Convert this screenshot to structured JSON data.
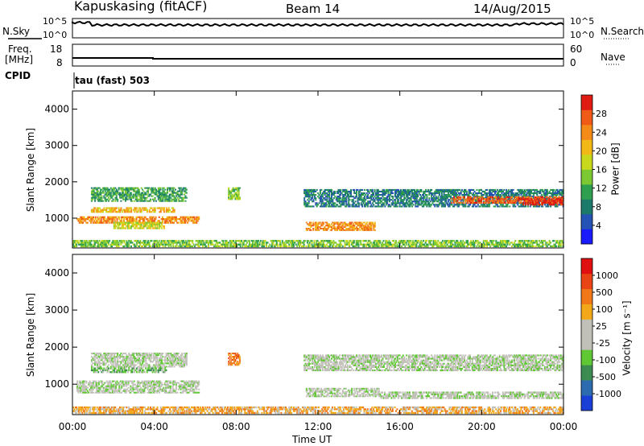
{
  "header": {
    "station": "Kapuskasing (fitACF)",
    "beam": "Beam 14",
    "date": "14/Aug/2015"
  },
  "top_panel_1": {
    "left_label": "N.Sky",
    "right_label": "N.Search",
    "left_ticks": [
      "10^5",
      "10^0"
    ],
    "right_ticks": [
      "10^5",
      "10^0"
    ]
  },
  "top_panel_2": {
    "left_label_1": "Freq.",
    "left_label_2": "[MHz]",
    "right_label": "Nave",
    "left_ticks": [
      "18",
      "8"
    ],
    "right_ticks": [
      "60",
      "0"
    ]
  },
  "cpid": {
    "label": "CPID",
    "mode": "tau (fast) 503"
  },
  "x_axis": {
    "label": "Time UT",
    "ticks": [
      "00:00",
      "04:00",
      "08:00",
      "12:00",
      "16:00",
      "20:00",
      "00:00"
    ]
  },
  "chart_data": [
    {
      "type": "heatmap",
      "name": "power",
      "ylabel": "Slant Range [km]",
      "ylim": [
        180,
        4500
      ],
      "xlim_hours": [
        0,
        24
      ],
      "y_ticks": [
        "1000",
        "2000",
        "3000",
        "4000"
      ],
      "colorbar_label": "Power [dB]",
      "colorbar_ticks": [
        "4",
        "8",
        "12",
        "16",
        "20",
        "24",
        "28"
      ],
      "colorbar_colors": [
        "#1a1aff",
        "#2552b5",
        "#1b7a6a",
        "#2e9f4e",
        "#7bc832",
        "#c8d91c",
        "#f2b818",
        "#f48a18",
        "#ef5a16",
        "#e01b12"
      ],
      "bands": [
        {
          "t0": 0.9,
          "t1": 5.6,
          "r0": 1450,
          "r1": 1850,
          "c": 3
        },
        {
          "t0": 0.9,
          "t1": 5.0,
          "r0": 1150,
          "r1": 1300,
          "c": 6
        },
        {
          "t0": 0.2,
          "t1": 6.2,
          "r0": 850,
          "r1": 1050,
          "c": 7
        },
        {
          "t0": 2.0,
          "t1": 4.5,
          "r0": 700,
          "r1": 900,
          "c": 5
        },
        {
          "t0": 0.0,
          "t1": 24.0,
          "r0": 200,
          "r1": 400,
          "c": 4
        },
        {
          "t0": 7.6,
          "t1": 8.2,
          "r0": 1500,
          "r1": 1850,
          "c": 4
        },
        {
          "t0": 11.3,
          "t1": 24.0,
          "r0": 1300,
          "r1": 1800,
          "c": 2
        },
        {
          "t0": 11.4,
          "t1": 14.8,
          "r0": 650,
          "r1": 900,
          "c": 7
        },
        {
          "t0": 18.5,
          "t1": 24.0,
          "r0": 1400,
          "r1": 1600,
          "c": 8
        },
        {
          "t0": 22.0,
          "t1": 24.0,
          "r0": 1350,
          "r1": 1550,
          "c": 9
        }
      ]
    },
    {
      "type": "heatmap",
      "name": "velocity",
      "ylabel": "Slant Range [km]",
      "ylim": [
        180,
        4500
      ],
      "xlim_hours": [
        0,
        24
      ],
      "y_ticks": [
        "1000",
        "2000",
        "3000",
        "4000"
      ],
      "colorbar_label": "Velocity [m s⁻¹]",
      "colorbar_ticks": [
        "1000",
        "500",
        "100",
        "25",
        "-25",
        "-100",
        "-500",
        "-1000"
      ],
      "colorbar_colors": [
        "#1a3fd6",
        "#2c6bb0",
        "#3c8c52",
        "#5fc832",
        "#c0c0b8",
        "#c0c0b8",
        "#f2a818",
        "#f07818",
        "#e84414",
        "#e01010"
      ],
      "bands": [
        {
          "t0": 0.9,
          "t1": 5.6,
          "r0": 1450,
          "r1": 1850,
          "c": 4
        },
        {
          "t0": 0.9,
          "t1": 4.6,
          "r0": 1300,
          "r1": 1450,
          "c": 3
        },
        {
          "t0": 0.2,
          "t1": 6.2,
          "r0": 750,
          "r1": 1100,
          "c": 4
        },
        {
          "t0": 0.0,
          "t1": 24.0,
          "r0": 200,
          "r1": 400,
          "c": 6
        },
        {
          "t0": 7.6,
          "t1": 8.2,
          "r0": 1500,
          "r1": 1850,
          "c": 7
        },
        {
          "t0": 11.3,
          "t1": 24.0,
          "r0": 1350,
          "r1": 1800,
          "c": 4
        },
        {
          "t0": 11.4,
          "t1": 15.0,
          "r0": 650,
          "r1": 900,
          "c": 4
        },
        {
          "t0": 15.0,
          "t1": 24.0,
          "r0": 600,
          "r1": 800,
          "c": 4
        }
      ]
    }
  ]
}
